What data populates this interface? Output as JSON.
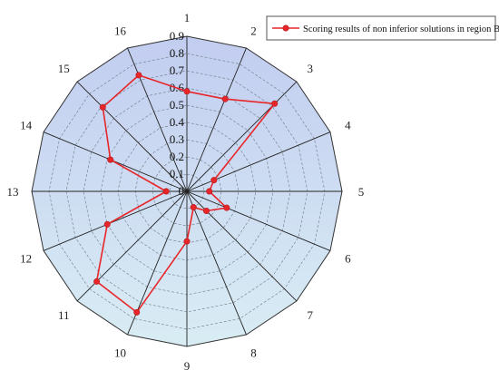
{
  "chart_data": {
    "type": "radar",
    "title": "",
    "categories": [
      "1",
      "2",
      "3",
      "4",
      "5",
      "6",
      "7",
      "8",
      "9",
      "10",
      "11",
      "12",
      "13",
      "14",
      "15",
      "16"
    ],
    "r_ticks": [
      "0",
      "0.1",
      "0.2",
      "0.3",
      "0.4",
      "0.5",
      "0.6",
      "0.7",
      "0.8",
      "0.9"
    ],
    "rlim": [
      0,
      0.9
    ],
    "grid": true,
    "legend": "top-right",
    "series": [
      {
        "name": "Scoring results of non inferior solutions in region B",
        "color": "#e8262a",
        "values": [
          0.58,
          0.58,
          0.72,
          0.17,
          0.13,
          0.25,
          0.16,
          0.1,
          0.29,
          0.76,
          0.74,
          0.5,
          0.12,
          0.48,
          0.69,
          0.73
        ]
      }
    ],
    "fill_top": "#c2cdf0",
    "fill_bottom": "#d9edf4"
  }
}
